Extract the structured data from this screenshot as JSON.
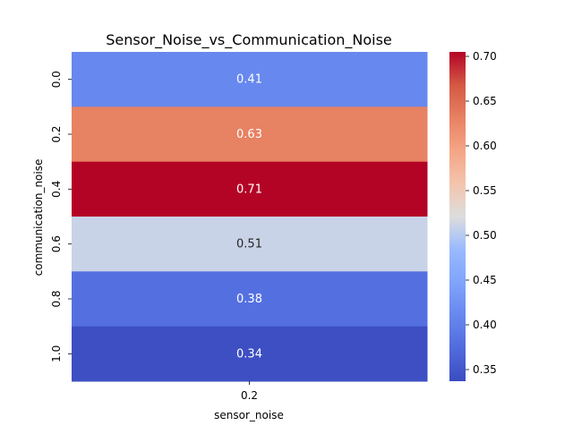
{
  "chart_data": {
    "type": "heatmap",
    "title": "Sensor_Noise_vs_Communication_Noise",
    "xlabel": "sensor_noise",
    "ylabel": "communication_noise",
    "x_categories": [
      "0.2"
    ],
    "y_categories": [
      "0.0",
      "0.2",
      "0.4",
      "0.6",
      "0.8",
      "1.0"
    ],
    "values": [
      [
        0.41
      ],
      [
        0.63
      ],
      [
        0.71
      ],
      [
        0.51
      ],
      [
        0.38
      ],
      [
        0.34
      ]
    ],
    "value_labels": [
      "0.41",
      "0.63",
      "0.71",
      "0.51",
      "0.38",
      "0.34"
    ],
    "colormap": "coolwarm",
    "colorbar": {
      "range": [
        0.337,
        0.705
      ],
      "ticks": [
        "0.35",
        "0.40",
        "0.45",
        "0.50",
        "0.55",
        "0.60",
        "0.65",
        "0.70"
      ],
      "tick_values": [
        0.35,
        0.4,
        0.45,
        0.5,
        0.55,
        0.6,
        0.65,
        0.7
      ]
    }
  }
}
